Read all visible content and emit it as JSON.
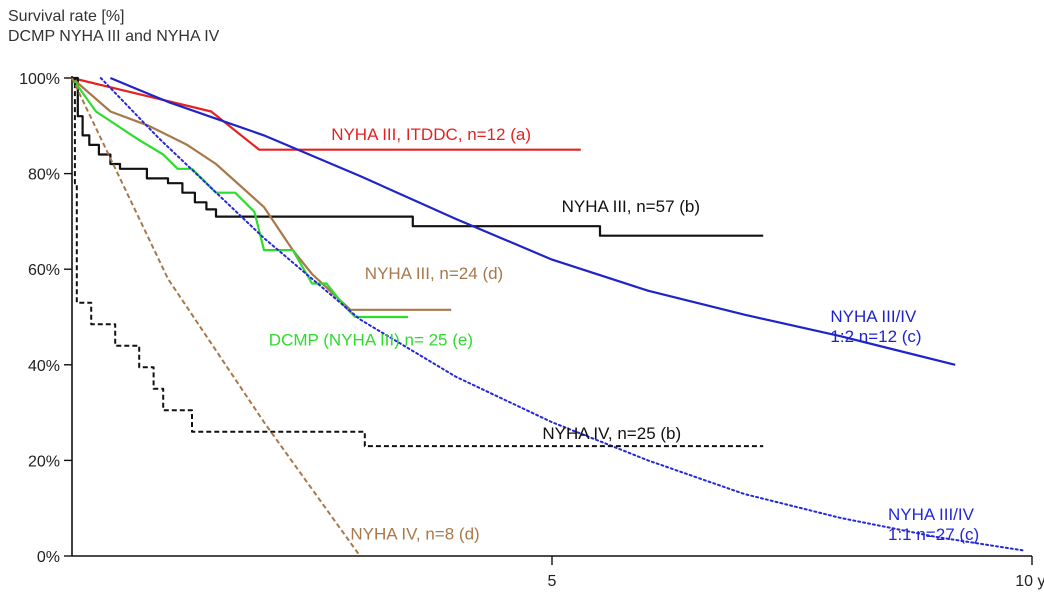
{
  "chart_data": {
    "type": "line",
    "title": "Survival rate [%]",
    "subtitle": "DCMP NYHA III and NYHA IV",
    "xlabel": "",
    "ylabel": "Survival rate [%]",
    "xlim": [
      0,
      10
    ],
    "ylim": [
      0,
      100
    ],
    "y_ticks": [
      "0%",
      "20%",
      "40%",
      "60%",
      "80%",
      "100%"
    ],
    "x_ticks": [
      {
        "value": 5,
        "label": "5"
      },
      {
        "value": 10,
        "label": "10 y."
      }
    ],
    "grid": false,
    "legend": "inline labels next to each curve",
    "series": [
      {
        "name": "NYHA III, ITDDC, n=12 (a)",
        "color": "#e52222",
        "style": "solid",
        "label_anchor": [
          2.7,
          87
        ],
        "points": [
          [
            0,
            100
          ],
          [
            1.45,
            93
          ],
          [
            1.95,
            85
          ],
          [
            5.3,
            85
          ]
        ]
      },
      {
        "name": "NYHA III, n=57 (b)",
        "color": "#111111",
        "style": "solid",
        "label_anchor": [
          5.1,
          72
        ],
        "points": [
          [
            0,
            100
          ],
          [
            0.06,
            100
          ],
          [
            0.06,
            92
          ],
          [
            0.11,
            92
          ],
          [
            0.11,
            88
          ],
          [
            0.18,
            88
          ],
          [
            0.18,
            86
          ],
          [
            0.28,
            86
          ],
          [
            0.28,
            84
          ],
          [
            0.4,
            84
          ],
          [
            0.4,
            82
          ],
          [
            0.5,
            82
          ],
          [
            0.5,
            81
          ],
          [
            0.78,
            81
          ],
          [
            0.78,
            79
          ],
          [
            1.0,
            79
          ],
          [
            1.0,
            78
          ],
          [
            1.15,
            78
          ],
          [
            1.15,
            76
          ],
          [
            1.28,
            76
          ],
          [
            1.28,
            74
          ],
          [
            1.4,
            74
          ],
          [
            1.4,
            72.5
          ],
          [
            1.5,
            72.5
          ],
          [
            1.5,
            71
          ],
          [
            3.55,
            71
          ],
          [
            3.55,
            69
          ],
          [
            5.5,
            69
          ],
          [
            5.5,
            67
          ],
          [
            7.2,
            67
          ]
        ]
      },
      {
        "name": "NYHA III, n=24 (d)",
        "color": "#a9784a",
        "style": "solid",
        "label_anchor": [
          3.05,
          58
        ],
        "points": [
          [
            0,
            100
          ],
          [
            0.4,
            93
          ],
          [
            0.8,
            90
          ],
          [
            1.2,
            86
          ],
          [
            1.5,
            82
          ],
          [
            2.0,
            73
          ],
          [
            2.3,
            64
          ],
          [
            2.5,
            59
          ],
          [
            2.9,
            51.5
          ],
          [
            3.4,
            51.5
          ],
          [
            3.95,
            51.5
          ]
        ]
      },
      {
        "name": "DCMP (NYHA III) n= 25 (e)",
        "color": "#2edc2e",
        "style": "solid",
        "label_anchor": [
          2.05,
          44
        ],
        "points": [
          [
            0,
            100
          ],
          [
            0.25,
            93
          ],
          [
            0.7,
            87
          ],
          [
            0.95,
            84
          ],
          [
            1.1,
            81
          ],
          [
            1.25,
            81
          ],
          [
            1.5,
            76
          ],
          [
            1.7,
            76
          ],
          [
            1.9,
            72
          ],
          [
            2.0,
            64
          ],
          [
            2.3,
            64
          ],
          [
            2.5,
            57
          ],
          [
            2.65,
            57
          ],
          [
            2.85,
            52
          ],
          [
            2.95,
            50
          ],
          [
            3.5,
            50
          ]
        ]
      },
      {
        "name": "NYHA III/IV 1:2 n=12 (c)",
        "color": "#1f24c9",
        "style": "solid",
        "label_anchor": [
          7.9,
          49
        ],
        "points": [
          [
            0.4,
            100
          ],
          [
            1.0,
            95
          ],
          [
            2.0,
            88
          ],
          [
            3.0,
            79.5
          ],
          [
            4.0,
            70.5
          ],
          [
            5.0,
            62
          ],
          [
            6.0,
            55.5
          ],
          [
            7.0,
            50.5
          ],
          [
            8.0,
            46
          ],
          [
            9.2,
            40
          ]
        ]
      },
      {
        "name": "NYHA III/IV 1:1 n=27 (c)",
        "color": "#2428d8",
        "style": "dotted",
        "label_anchor": [
          8.5,
          7.5
        ],
        "points": [
          [
            0.3,
            100
          ],
          [
            0.9,
            87.5
          ],
          [
            2.0,
            66.5
          ],
          [
            3.0,
            49.5
          ],
          [
            4.0,
            37.5
          ],
          [
            5.0,
            28
          ],
          [
            6.0,
            20
          ],
          [
            7.0,
            13
          ],
          [
            8.0,
            8
          ],
          [
            9.0,
            4
          ],
          [
            9.9,
            1.2
          ]
        ]
      },
      {
        "name": "NYHA IV, n=25 (b)",
        "color": "#111111",
        "style": "dashed",
        "label_anchor": [
          4.9,
          24.5
        ],
        "points": [
          [
            0,
            100
          ],
          [
            0.03,
            100
          ],
          [
            0.03,
            78
          ],
          [
            0.05,
            78
          ],
          [
            0.05,
            53
          ],
          [
            0.2,
            53
          ],
          [
            0.2,
            48.5
          ],
          [
            0.45,
            48.5
          ],
          [
            0.45,
            44
          ],
          [
            0.7,
            44
          ],
          [
            0.7,
            39.5
          ],
          [
            0.85,
            39.5
          ],
          [
            0.85,
            35
          ],
          [
            0.95,
            35
          ],
          [
            0.95,
            30.5
          ],
          [
            1.25,
            30.5
          ],
          [
            1.25,
            26
          ],
          [
            3.05,
            26
          ],
          [
            3.05,
            23
          ],
          [
            7.2,
            23
          ]
        ]
      },
      {
        "name": "NYHA IV, n=8 (d)",
        "color": "#a9784a",
        "style": "dashed",
        "label_anchor": [
          2.9,
          3.5
        ],
        "points": [
          [
            0,
            100
          ],
          [
            1.0,
            58
          ],
          [
            2.0,
            28
          ],
          [
            3.0,
            0
          ]
        ]
      }
    ]
  }
}
